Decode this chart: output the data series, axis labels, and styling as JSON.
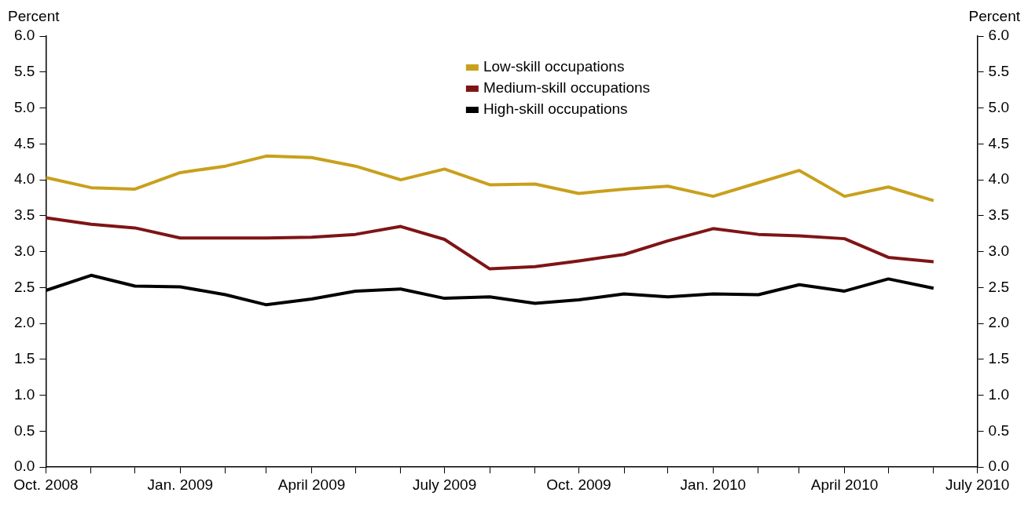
{
  "chart_data": {
    "type": "line",
    "ylabel": "Percent",
    "y2label": "Percent",
    "x": [
      "2008-10",
      "2008-11",
      "2008-12",
      "2009-01",
      "2009-02",
      "2009-03",
      "2009-04",
      "2009-05",
      "2009-06",
      "2009-07",
      "2009-08",
      "2009-09",
      "2009-10",
      "2009-11",
      "2009-12",
      "2010-01",
      "2010-02",
      "2010-03",
      "2010-04",
      "2010-05",
      "2010-06"
    ],
    "series": [
      {
        "name": "Low-skill occupations",
        "color": "#c9a01c",
        "values": [
          4.03,
          3.89,
          3.87,
          4.1,
          4.19,
          4.33,
          4.31,
          4.19,
          4.0,
          4.15,
          3.93,
          3.94,
          3.81,
          3.87,
          3.91,
          3.77,
          3.96,
          4.13,
          3.77,
          3.9,
          3.71
        ]
      },
      {
        "name": "Medium-skill occupations",
        "color": "#7f1416",
        "values": [
          3.47,
          3.38,
          3.33,
          3.19,
          3.19,
          3.19,
          3.2,
          3.24,
          3.35,
          3.17,
          2.76,
          2.79,
          2.87,
          2.96,
          3.15,
          3.32,
          3.24,
          3.22,
          3.18,
          2.92,
          2.86
        ]
      },
      {
        "name": "High-skill occupations",
        "color": "#000000",
        "values": [
          2.46,
          2.67,
          2.52,
          2.51,
          2.4,
          2.26,
          2.34,
          2.45,
          2.48,
          2.35,
          2.37,
          2.28,
          2.33,
          2.41,
          2.37,
          2.41,
          2.4,
          2.54,
          2.45,
          2.62,
          2.49
        ]
      }
    ],
    "xlim": [
      "2008-10",
      "2010-07"
    ],
    "xticks": [
      {
        "value": "2008-10",
        "label": "Oct. 2008"
      },
      {
        "value": "2008-11",
        "label": null
      },
      {
        "value": "2008-12",
        "label": null
      },
      {
        "value": "2009-01",
        "label": "Jan. 2009"
      },
      {
        "value": "2009-02",
        "label": null
      },
      {
        "value": "2009-03",
        "label": null
      },
      {
        "value": "2009-04",
        "label": "April 2009"
      },
      {
        "value": "2009-05",
        "label": null
      },
      {
        "value": "2009-06",
        "label": null
      },
      {
        "value": "2009-07",
        "label": "July 2009"
      },
      {
        "value": "2009-08",
        "label": null
      },
      {
        "value": "2009-09",
        "label": null
      },
      {
        "value": "2009-10",
        "label": "Oct. 2009"
      },
      {
        "value": "2009-11",
        "label": null
      },
      {
        "value": "2009-12",
        "label": null
      },
      {
        "value": "2010-01",
        "label": "Jan. 2010"
      },
      {
        "value": "2010-02",
        "label": null
      },
      {
        "value": "2010-03",
        "label": null
      },
      {
        "value": "2010-04",
        "label": "April 2010"
      },
      {
        "value": "2010-05",
        "label": null
      },
      {
        "value": "2010-06",
        "label": null
      },
      {
        "value": "2010-07",
        "label": "July 2010"
      }
    ],
    "ylim": [
      0,
      6
    ],
    "yticks": [
      {
        "value": 0,
        "label": "0.0"
      },
      {
        "value": 0.5,
        "label": "0.5"
      },
      {
        "value": 1,
        "label": "1.0"
      },
      {
        "value": 1.5,
        "label": "1.5"
      },
      {
        "value": 2,
        "label": "2.0"
      },
      {
        "value": 2.5,
        "label": "2.5"
      },
      {
        "value": 3,
        "label": "3.0"
      },
      {
        "value": 3.5,
        "label": "3.5"
      },
      {
        "value": 4,
        "label": "4.0"
      },
      {
        "value": 4.5,
        "label": "4.5"
      },
      {
        "value": 5,
        "label": "5.0"
      },
      {
        "value": 5.5,
        "label": "5.5"
      },
      {
        "value": 6,
        "label": "6.0"
      }
    ],
    "y2lim": [
      0,
      6
    ],
    "y2ticks": [
      {
        "value": 0,
        "label": "0.0"
      },
      {
        "value": 0.5,
        "label": "0.5"
      },
      {
        "value": 1,
        "label": "1.0"
      },
      {
        "value": 1.5,
        "label": "1.5"
      },
      {
        "value": 2,
        "label": "2.0"
      },
      {
        "value": 2.5,
        "label": "2.5"
      },
      {
        "value": 3,
        "label": "3.0"
      },
      {
        "value": 3.5,
        "label": "3.5"
      },
      {
        "value": 4,
        "label": "4.0"
      },
      {
        "value": 4.5,
        "label": "4.5"
      },
      {
        "value": 5,
        "label": "5.0"
      },
      {
        "value": 5.5,
        "label": "5.5"
      },
      {
        "value": 6,
        "label": "6.0"
      }
    ],
    "grid": false,
    "legend": "top",
    "marker": "none",
    "line_style": "solid"
  }
}
